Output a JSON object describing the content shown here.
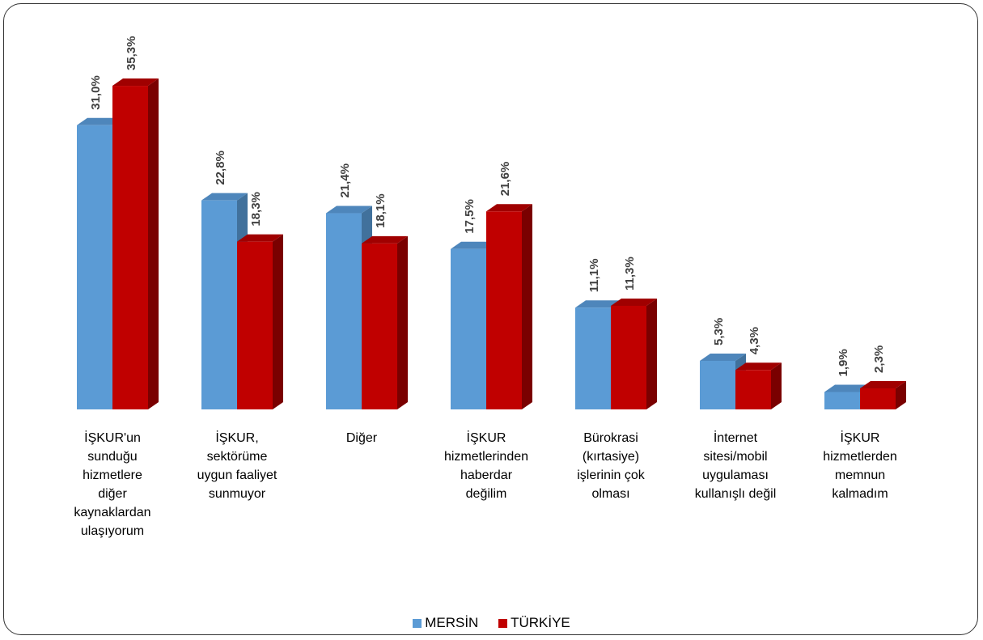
{
  "chart_data": {
    "type": "bar",
    "title": "",
    "xlabel": "",
    "ylabel": "",
    "ylim": [
      0,
      40
    ],
    "grid": false,
    "legend_position": "bottom",
    "categories": [
      "İŞKUR'un\nsunduğu\nhizmetlere\ndiğer\nkaynaklardan\nulaşıyorum",
      "İŞKUR,\nsektörüme\nuygun faaliyet\nsunmuyor",
      "Diğer",
      "İŞKUR\nhizmetlerinden\nhaberdar\ndeğilim",
      "Bürokrasi\n(kırtasiye)\nişlerinin çok\nolması",
      "İnternet\nsitesi/mobil\nuygulaması\nkullanışlı değil",
      "İŞKUR\nhizmetlerden\nmemnun\nkalmadım"
    ],
    "series": [
      {
        "name": "MERSİN",
        "color": "#5B9BD5",
        "values": [
          31.0,
          22.8,
          21.4,
          17.5,
          11.1,
          5.3,
          1.9
        ],
        "labels": [
          "31,0%",
          "22,8%",
          "21,4%",
          "17,5%",
          "11,1%",
          "5,3%",
          "1,9%"
        ]
      },
      {
        "name": "TÜRKİYE",
        "color": "#C00000",
        "values": [
          35.3,
          18.3,
          18.1,
          21.6,
          11.3,
          4.3,
          2.3
        ],
        "labels": [
          "35,3%",
          "18,3%",
          "18,1%",
          "21,6%",
          "11,3%",
          "4,3%",
          "2,3%"
        ]
      }
    ]
  }
}
